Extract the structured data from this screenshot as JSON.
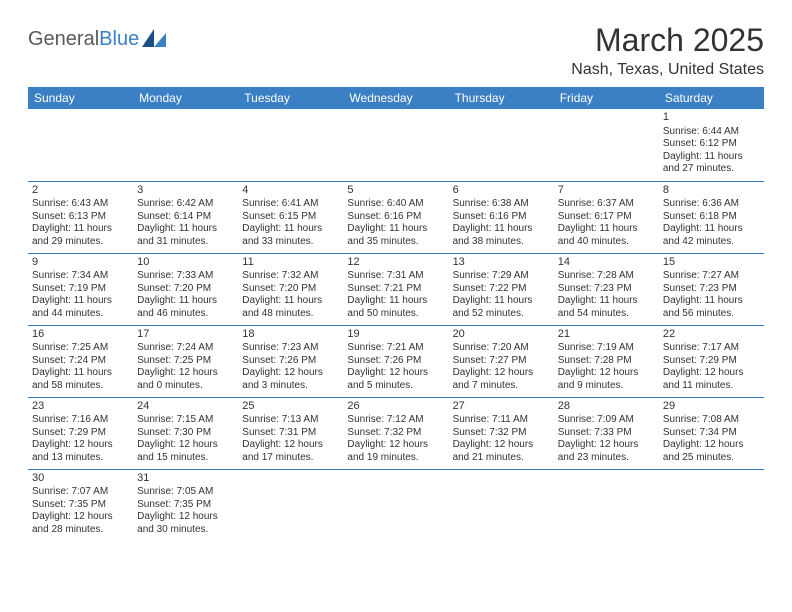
{
  "logo": {
    "text1": "General",
    "text2": "Blue"
  },
  "title": "March 2025",
  "location": "Nash, Texas, United States",
  "colors": {
    "header_bg": "#3b7fc4",
    "header_text": "#ffffff",
    "border": "#3b7fc4",
    "body_text": "#333333",
    "logo_gray": "#5a5a5a",
    "logo_blue": "#3b7fc4",
    "background": "#ffffff"
  },
  "typography": {
    "title_fontsize": 32,
    "location_fontsize": 16,
    "weekday_fontsize": 12,
    "cell_fontsize": 10,
    "daynum_fontsize": 11
  },
  "weekdays": [
    "Sunday",
    "Monday",
    "Tuesday",
    "Wednesday",
    "Thursday",
    "Friday",
    "Saturday"
  ],
  "weeks": [
    [
      null,
      null,
      null,
      null,
      null,
      null,
      {
        "d": "1",
        "sr": "Sunrise: 6:44 AM",
        "ss": "Sunset: 6:12 PM",
        "dl": "Daylight: 11 hours and 27 minutes."
      }
    ],
    [
      {
        "d": "2",
        "sr": "Sunrise: 6:43 AM",
        "ss": "Sunset: 6:13 PM",
        "dl": "Daylight: 11 hours and 29 minutes."
      },
      {
        "d": "3",
        "sr": "Sunrise: 6:42 AM",
        "ss": "Sunset: 6:14 PM",
        "dl": "Daylight: 11 hours and 31 minutes."
      },
      {
        "d": "4",
        "sr": "Sunrise: 6:41 AM",
        "ss": "Sunset: 6:15 PM",
        "dl": "Daylight: 11 hours and 33 minutes."
      },
      {
        "d": "5",
        "sr": "Sunrise: 6:40 AM",
        "ss": "Sunset: 6:16 PM",
        "dl": "Daylight: 11 hours and 35 minutes."
      },
      {
        "d": "6",
        "sr": "Sunrise: 6:38 AM",
        "ss": "Sunset: 6:16 PM",
        "dl": "Daylight: 11 hours and 38 minutes."
      },
      {
        "d": "7",
        "sr": "Sunrise: 6:37 AM",
        "ss": "Sunset: 6:17 PM",
        "dl": "Daylight: 11 hours and 40 minutes."
      },
      {
        "d": "8",
        "sr": "Sunrise: 6:36 AM",
        "ss": "Sunset: 6:18 PM",
        "dl": "Daylight: 11 hours and 42 minutes."
      }
    ],
    [
      {
        "d": "9",
        "sr": "Sunrise: 7:34 AM",
        "ss": "Sunset: 7:19 PM",
        "dl": "Daylight: 11 hours and 44 minutes."
      },
      {
        "d": "10",
        "sr": "Sunrise: 7:33 AM",
        "ss": "Sunset: 7:20 PM",
        "dl": "Daylight: 11 hours and 46 minutes."
      },
      {
        "d": "11",
        "sr": "Sunrise: 7:32 AM",
        "ss": "Sunset: 7:20 PM",
        "dl": "Daylight: 11 hours and 48 minutes."
      },
      {
        "d": "12",
        "sr": "Sunrise: 7:31 AM",
        "ss": "Sunset: 7:21 PM",
        "dl": "Daylight: 11 hours and 50 minutes."
      },
      {
        "d": "13",
        "sr": "Sunrise: 7:29 AM",
        "ss": "Sunset: 7:22 PM",
        "dl": "Daylight: 11 hours and 52 minutes."
      },
      {
        "d": "14",
        "sr": "Sunrise: 7:28 AM",
        "ss": "Sunset: 7:23 PM",
        "dl": "Daylight: 11 hours and 54 minutes."
      },
      {
        "d": "15",
        "sr": "Sunrise: 7:27 AM",
        "ss": "Sunset: 7:23 PM",
        "dl": "Daylight: 11 hours and 56 minutes."
      }
    ],
    [
      {
        "d": "16",
        "sr": "Sunrise: 7:25 AM",
        "ss": "Sunset: 7:24 PM",
        "dl": "Daylight: 11 hours and 58 minutes."
      },
      {
        "d": "17",
        "sr": "Sunrise: 7:24 AM",
        "ss": "Sunset: 7:25 PM",
        "dl": "Daylight: 12 hours and 0 minutes."
      },
      {
        "d": "18",
        "sr": "Sunrise: 7:23 AM",
        "ss": "Sunset: 7:26 PM",
        "dl": "Daylight: 12 hours and 3 minutes."
      },
      {
        "d": "19",
        "sr": "Sunrise: 7:21 AM",
        "ss": "Sunset: 7:26 PM",
        "dl": "Daylight: 12 hours and 5 minutes."
      },
      {
        "d": "20",
        "sr": "Sunrise: 7:20 AM",
        "ss": "Sunset: 7:27 PM",
        "dl": "Daylight: 12 hours and 7 minutes."
      },
      {
        "d": "21",
        "sr": "Sunrise: 7:19 AM",
        "ss": "Sunset: 7:28 PM",
        "dl": "Daylight: 12 hours and 9 minutes."
      },
      {
        "d": "22",
        "sr": "Sunrise: 7:17 AM",
        "ss": "Sunset: 7:29 PM",
        "dl": "Daylight: 12 hours and 11 minutes."
      }
    ],
    [
      {
        "d": "23",
        "sr": "Sunrise: 7:16 AM",
        "ss": "Sunset: 7:29 PM",
        "dl": "Daylight: 12 hours and 13 minutes."
      },
      {
        "d": "24",
        "sr": "Sunrise: 7:15 AM",
        "ss": "Sunset: 7:30 PM",
        "dl": "Daylight: 12 hours and 15 minutes."
      },
      {
        "d": "25",
        "sr": "Sunrise: 7:13 AM",
        "ss": "Sunset: 7:31 PM",
        "dl": "Daylight: 12 hours and 17 minutes."
      },
      {
        "d": "26",
        "sr": "Sunrise: 7:12 AM",
        "ss": "Sunset: 7:32 PM",
        "dl": "Daylight: 12 hours and 19 minutes."
      },
      {
        "d": "27",
        "sr": "Sunrise: 7:11 AM",
        "ss": "Sunset: 7:32 PM",
        "dl": "Daylight: 12 hours and 21 minutes."
      },
      {
        "d": "28",
        "sr": "Sunrise: 7:09 AM",
        "ss": "Sunset: 7:33 PM",
        "dl": "Daylight: 12 hours and 23 minutes."
      },
      {
        "d": "29",
        "sr": "Sunrise: 7:08 AM",
        "ss": "Sunset: 7:34 PM",
        "dl": "Daylight: 12 hours and 25 minutes."
      }
    ],
    [
      {
        "d": "30",
        "sr": "Sunrise: 7:07 AM",
        "ss": "Sunset: 7:35 PM",
        "dl": "Daylight: 12 hours and 28 minutes."
      },
      {
        "d": "31",
        "sr": "Sunrise: 7:05 AM",
        "ss": "Sunset: 7:35 PM",
        "dl": "Daylight: 12 hours and 30 minutes."
      },
      null,
      null,
      null,
      null,
      null
    ]
  ]
}
